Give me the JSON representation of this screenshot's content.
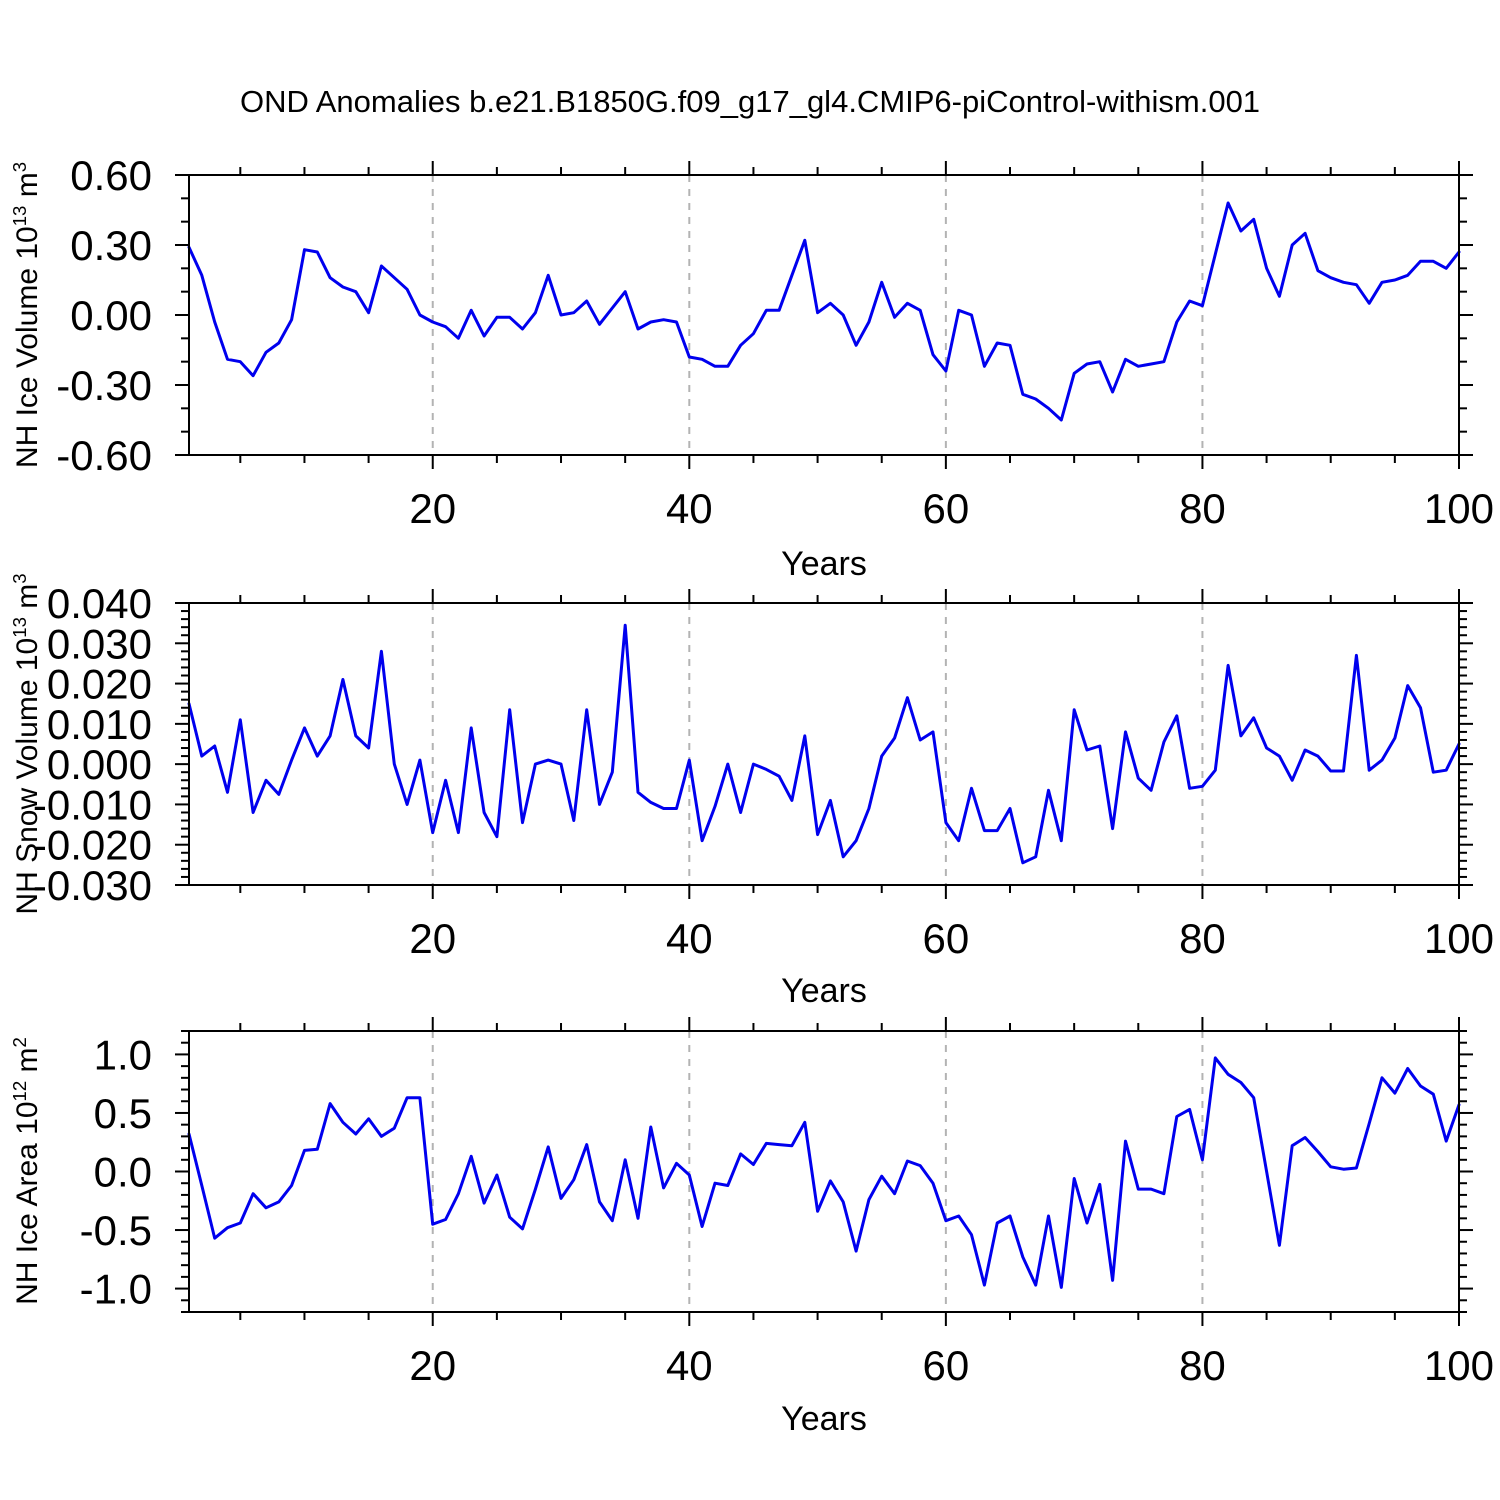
{
  "title": "OND Anomalies b.e21.B1850G.f09_g17_gl4.CMIP6-piControl-withism.001",
  "line_color": "#0000EE",
  "grid_color": "#B3B3B3",
  "axis_color": "#000000",
  "chart_data": [
    {
      "type": "line",
      "panel": 1,
      "xlabel": "Years",
      "ylabel": {
        "prefix": "NH Ice Volume 10",
        "exponent": "13",
        "unit": "m",
        "unit_exponent": "3"
      },
      "xlim": [
        1,
        100
      ],
      "x_start": 1,
      "xticks_major": [
        20,
        40,
        60,
        80,
        100
      ],
      "xticks_minor_step": 5,
      "x_gridlines": [
        20,
        40,
        60,
        80
      ],
      "ylim": [
        -0.6,
        0.6
      ],
      "yticks_major": [
        0.6,
        0.3,
        0.0,
        -0.3,
        -0.6
      ],
      "ytick_labels": [
        "0.60",
        "0.30",
        "0.00",
        "-0.30",
        "-0.60"
      ],
      "yticks_minor_step": 0.1,
      "grid": true,
      "values": [
        0.29,
        0.17,
        -0.03,
        -0.19,
        -0.2,
        -0.26,
        -0.16,
        -0.12,
        -0.02,
        0.28,
        0.27,
        0.16,
        0.12,
        0.1,
        0.01,
        0.21,
        0.16,
        0.11,
        0.0,
        -0.03,
        -0.05,
        -0.1,
        0.02,
        -0.09,
        -0.01,
        -0.01,
        -0.06,
        0.01,
        0.17,
        0.0,
        0.01,
        0.06,
        -0.04,
        0.03,
        0.1,
        -0.06,
        -0.03,
        -0.02,
        -0.03,
        -0.18,
        -0.19,
        -0.22,
        -0.22,
        -0.13,
        -0.08,
        0.02,
        0.02,
        0.17,
        0.32,
        0.01,
        0.05,
        0.0,
        -0.13,
        -0.03,
        0.14,
        -0.01,
        0.05,
        0.02,
        -0.17,
        -0.24,
        0.02,
        0.0,
        -0.22,
        -0.12,
        -0.13,
        -0.34,
        -0.36,
        -0.4,
        -0.45,
        -0.25,
        -0.21,
        -0.2,
        -0.33,
        -0.19,
        -0.22,
        -0.21,
        -0.2,
        -0.03,
        0.06,
        0.04,
        0.26,
        0.48,
        0.36,
        0.41,
        0.2,
        0.08,
        0.3,
        0.35,
        0.19,
        0.16,
        0.14,
        0.13,
        0.05,
        0.14,
        0.15,
        0.17,
        0.23,
        0.23,
        0.2,
        0.27
      ]
    },
    {
      "type": "line",
      "panel": 2,
      "xlabel": "Years",
      "ylabel": {
        "prefix": "NH Snow Volume 10",
        "exponent": "13",
        "unit": "m",
        "unit_exponent": "3"
      },
      "xlim": [
        1,
        100
      ],
      "x_start": 1,
      "xticks_major": [
        20,
        40,
        60,
        80,
        100
      ],
      "xticks_minor_step": 5,
      "x_gridlines": [
        20,
        40,
        60,
        80
      ],
      "ylim": [
        -0.03,
        0.04
      ],
      "yticks_major": [
        0.04,
        0.03,
        0.02,
        0.01,
        0.0,
        -0.01,
        -0.02,
        -0.03
      ],
      "ytick_labels": [
        "0.040",
        "0.030",
        "0.020",
        "0.010",
        "0.000",
        "-0.010",
        "-0.020",
        "-0.030"
      ],
      "yticks_minor_step": 0.002,
      "grid": true,
      "values": [
        0.015,
        0.002,
        0.0045,
        -0.007,
        0.011,
        -0.012,
        -0.004,
        -0.0075,
        0.001,
        0.009,
        0.002,
        0.007,
        0.021,
        0.007,
        0.004,
        0.028,
        0.0,
        -0.01,
        0.001,
        -0.017,
        -0.004,
        -0.017,
        0.009,
        -0.012,
        -0.018,
        0.0135,
        -0.0145,
        0.0,
        0.001,
        0.0,
        -0.014,
        0.0135,
        -0.01,
        -0.002,
        0.0345,
        -0.007,
        -0.0095,
        -0.011,
        -0.011,
        0.001,
        -0.019,
        -0.0105,
        0.0,
        -0.012,
        0.0,
        -0.0013,
        -0.003,
        -0.009,
        0.007,
        -0.0175,
        -0.009,
        -0.023,
        -0.019,
        -0.011,
        0.002,
        0.0065,
        0.0165,
        0.006,
        0.008,
        -0.0145,
        -0.019,
        -0.006,
        -0.0165,
        -0.0165,
        -0.011,
        -0.0245,
        -0.023,
        -0.0065,
        -0.019,
        0.0135,
        0.0035,
        0.0045,
        -0.016,
        0.008,
        -0.0035,
        -0.0065,
        0.0055,
        0.012,
        -0.006,
        -0.0055,
        -0.0015,
        0.0245,
        0.007,
        0.0115,
        0.004,
        0.002,
        -0.004,
        0.0035,
        0.002,
        -0.0017,
        -0.0017,
        0.027,
        -0.0015,
        0.001,
        0.0065,
        0.0195,
        0.014,
        -0.002,
        -0.0015,
        0.005
      ]
    },
    {
      "type": "line",
      "panel": 3,
      "xlabel": "Years",
      "ylabel": {
        "prefix": "NH Ice Area 10",
        "exponent": "12",
        "unit": "m",
        "unit_exponent": "2"
      },
      "xlim": [
        1,
        100
      ],
      "x_start": 1,
      "xticks_major": [
        20,
        40,
        60,
        80,
        100
      ],
      "xticks_minor_step": 5,
      "x_gridlines": [
        20,
        40,
        60,
        80
      ],
      "ylim": [
        -1.2,
        1.2
      ],
      "yticks_major": [
        1.0,
        0.5,
        0.0,
        -0.5,
        -1.0
      ],
      "ytick_labels": [
        "1.0",
        "0.5",
        "0.0",
        "-0.5",
        "-1.0"
      ],
      "yticks_minor_step": 0.1,
      "grid": true,
      "values": [
        0.32,
        -0.12,
        -0.57,
        -0.48,
        -0.44,
        -0.19,
        -0.31,
        -0.26,
        -0.12,
        0.18,
        0.19,
        0.58,
        0.42,
        0.32,
        0.45,
        0.3,
        0.37,
        0.63,
        0.63,
        -0.45,
        -0.41,
        -0.19,
        0.13,
        -0.27,
        -0.03,
        -0.39,
        -0.49,
        -0.15,
        0.21,
        -0.23,
        -0.07,
        0.23,
        -0.26,
        -0.42,
        0.1,
        -0.4,
        0.38,
        -0.14,
        0.07,
        -0.03,
        -0.47,
        -0.1,
        -0.12,
        0.15,
        0.06,
        0.24,
        0.23,
        0.22,
        0.42,
        -0.34,
        -0.08,
        -0.26,
        -0.68,
        -0.24,
        -0.04,
        -0.19,
        0.09,
        0.05,
        -0.1,
        -0.42,
        -0.38,
        -0.54,
        -0.97,
        -0.44,
        -0.38,
        -0.73,
        -0.97,
        -0.38,
        -0.99,
        -0.06,
        -0.44,
        -0.11,
        -0.93,
        0.26,
        -0.15,
        -0.15,
        -0.19,
        0.47,
        0.53,
        0.1,
        0.97,
        0.83,
        0.76,
        0.63,
        0.0,
        -0.63,
        0.22,
        0.29,
        0.17,
        0.04,
        0.02,
        0.03,
        0.41,
        0.8,
        0.67,
        0.88,
        0.73,
        0.66,
        0.26,
        0.57
      ]
    }
  ]
}
